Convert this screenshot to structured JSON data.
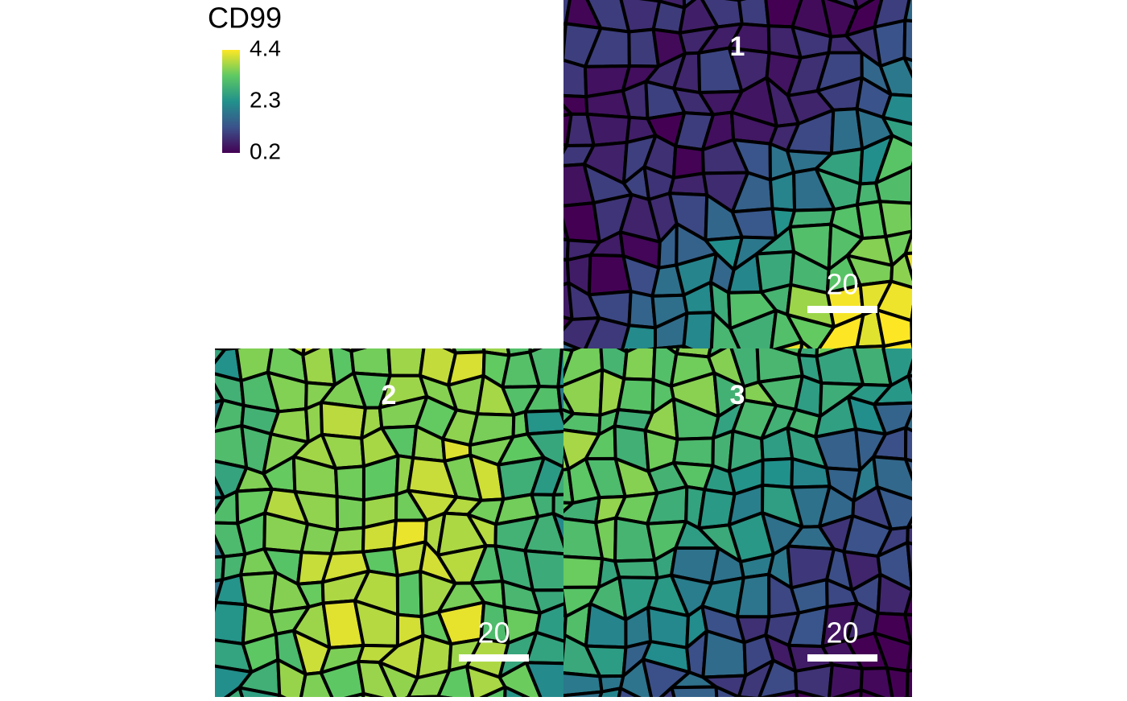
{
  "legend": {
    "title": "CD99",
    "lim": [
      0.2,
      4.4
    ],
    "ticks": [
      4.4,
      2.3,
      0.2
    ]
  },
  "panels": [
    {
      "label": "1",
      "scale_bar": 20
    },
    {
      "label": "2",
      "scale_bar": 20
    },
    {
      "label": "3",
      "scale_bar": 20
    }
  ]
}
